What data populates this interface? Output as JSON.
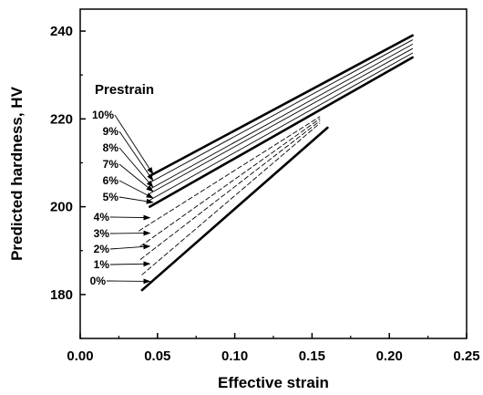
{
  "chart_data": {
    "type": "line",
    "title": "",
    "xlabel": "Effective strain",
    "ylabel": "Predicted hardness, HV",
    "xlim": [
      0.0,
      0.25
    ],
    "ylim": [
      170,
      245
    ],
    "x_ticks": [
      0.0,
      0.05,
      0.1,
      0.15,
      0.2,
      0.25
    ],
    "x_tick_labels": [
      "0.00",
      "0.05",
      "0.10",
      "0.15",
      "0.20",
      "0.25"
    ],
    "y_ticks": [
      180,
      200,
      220,
      240
    ],
    "y_tick_labels": [
      "180",
      "200",
      "220",
      "240"
    ],
    "grid": false,
    "legend": "none",
    "annotation": "Prestrain",
    "series": [
      {
        "name": "0%",
        "x": [
          0.04,
          0.16
        ],
        "y": [
          181.0,
          218.0
        ],
        "style": "solid",
        "arrow_to": [
          0.045,
          183.0
        ]
      },
      {
        "name": "1%",
        "x": [
          0.04,
          0.155
        ],
        "y": [
          184.5,
          219.0
        ],
        "style": "dashed",
        "arrow_to": [
          0.045,
          187.0
        ]
      },
      {
        "name": "2%",
        "x": [
          0.039,
          0.155
        ],
        "y": [
          188.0,
          219.5
        ],
        "style": "dashed",
        "arrow_to": [
          0.045,
          191.0
        ]
      },
      {
        "name": "3%",
        "x": [
          0.039,
          0.155
        ],
        "y": [
          191.0,
          220.0
        ],
        "style": "dashed",
        "arrow_to": [
          0.045,
          194.0
        ]
      },
      {
        "name": "4%",
        "x": [
          0.038,
          0.155
        ],
        "y": [
          194.5,
          220.5
        ],
        "style": "dashed",
        "arrow_to": [
          0.045,
          197.5
        ]
      },
      {
        "name": "5%",
        "x": [
          0.045,
          0.215
        ],
        "y": [
          200.0,
          234.0
        ],
        "style": "solid",
        "arrow_to": [
          0.047,
          201.0
        ]
      },
      {
        "name": "6%",
        "x": [
          0.045,
          0.215
        ],
        "y": [
          201.5,
          235.0
        ],
        "style": "thin",
        "arrow_to": [
          0.047,
          202.0
        ]
      },
      {
        "name": "7%",
        "x": [
          0.045,
          0.215
        ],
        "y": [
          203.0,
          236.0
        ],
        "style": "thin",
        "arrow_to": [
          0.047,
          203.5
        ]
      },
      {
        "name": "8%",
        "x": [
          0.045,
          0.215
        ],
        "y": [
          204.0,
          237.0
        ],
        "style": "thin",
        "arrow_to": [
          0.047,
          204.5
        ]
      },
      {
        "name": "9%",
        "x": [
          0.045,
          0.215
        ],
        "y": [
          205.5,
          238.0
        ],
        "style": "thin",
        "arrow_to": [
          0.047,
          206.0
        ]
      },
      {
        "name": "10%",
        "x": [
          0.045,
          0.215
        ],
        "y": [
          207.0,
          239.0
        ],
        "style": "solid",
        "arrow_to": [
          0.047,
          207.5
        ]
      }
    ]
  },
  "colors": {
    "ink": "#000000",
    "background": "#ffffff"
  }
}
